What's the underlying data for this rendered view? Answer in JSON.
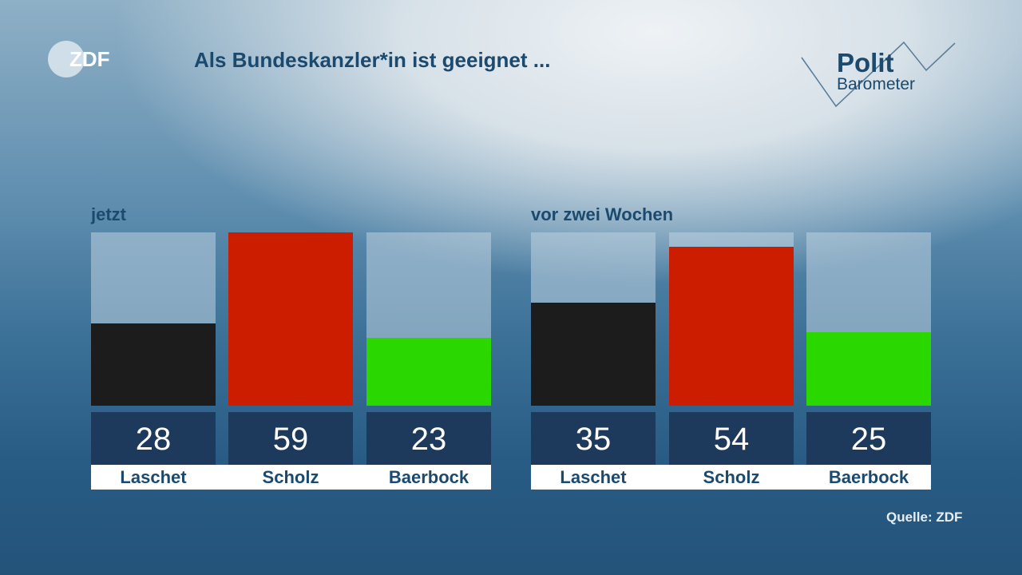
{
  "logo": {
    "text": "ZDF"
  },
  "brand": {
    "line1": "Polit",
    "line2": "Barometer"
  },
  "chart_data": {
    "type": "bar",
    "title": "Als Bundeskanzler*in ist geeignet ...",
    "ylim": [
      0,
      59
    ],
    "groups": [
      {
        "label": "jetzt",
        "categories": [
          "Laschet",
          "Scholz",
          "Baerbock"
        ],
        "values": [
          28,
          59,
          23
        ],
        "colors": [
          "#1c1c1c",
          "#cc1d00",
          "#2ad800"
        ]
      },
      {
        "label": "vor zwei Wochen",
        "categories": [
          "Laschet",
          "Scholz",
          "Baerbock"
        ],
        "values": [
          35,
          54,
          25
        ],
        "colors": [
          "#1c1c1c",
          "#cc1d00",
          "#2ad800"
        ]
      }
    ],
    "source": "Quelle: ZDF"
  }
}
